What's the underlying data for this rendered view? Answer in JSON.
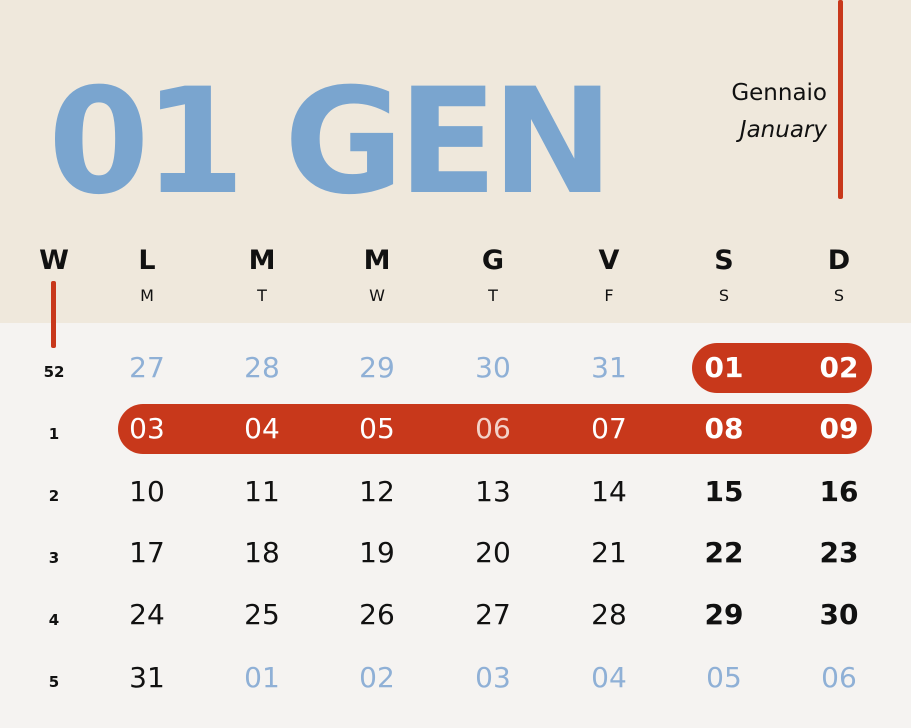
{
  "header": {
    "title": "01 GEN",
    "month_it": "Gennaio",
    "month_en": "January"
  },
  "weekday_header": {
    "week_label": "W",
    "days_it": [
      "L",
      "M",
      "M",
      "G",
      "V",
      "S",
      "D"
    ],
    "days_en": [
      "M",
      "T",
      "W",
      "T",
      "F",
      "S",
      "S"
    ]
  },
  "weeks": [
    {
      "week": "52",
      "days": [
        "27",
        "28",
        "29",
        "30",
        "31",
        "01",
        "02"
      ]
    },
    {
      "week": "1",
      "days": [
        "03",
        "04",
        "05",
        "06",
        "07",
        "08",
        "09"
      ]
    },
    {
      "week": "2",
      "days": [
        "10",
        "11",
        "12",
        "13",
        "14",
        "15",
        "16"
      ]
    },
    {
      "week": "3",
      "days": [
        "17",
        "18",
        "19",
        "20",
        "21",
        "22",
        "23"
      ]
    },
    {
      "week": "4",
      "days": [
        "24",
        "25",
        "26",
        "27",
        "28",
        "29",
        "30"
      ]
    },
    {
      "week": "5",
      "days": [
        "31",
        "01",
        "02",
        "03",
        "04",
        "05",
        "06"
      ]
    }
  ],
  "colors": {
    "accent_red": "#c8381b",
    "title_blue": "#7aa5cf",
    "muted_blue": "#8fb0d6",
    "header_bg": "#efe8dc",
    "body_bg": "#f5f3f1"
  }
}
